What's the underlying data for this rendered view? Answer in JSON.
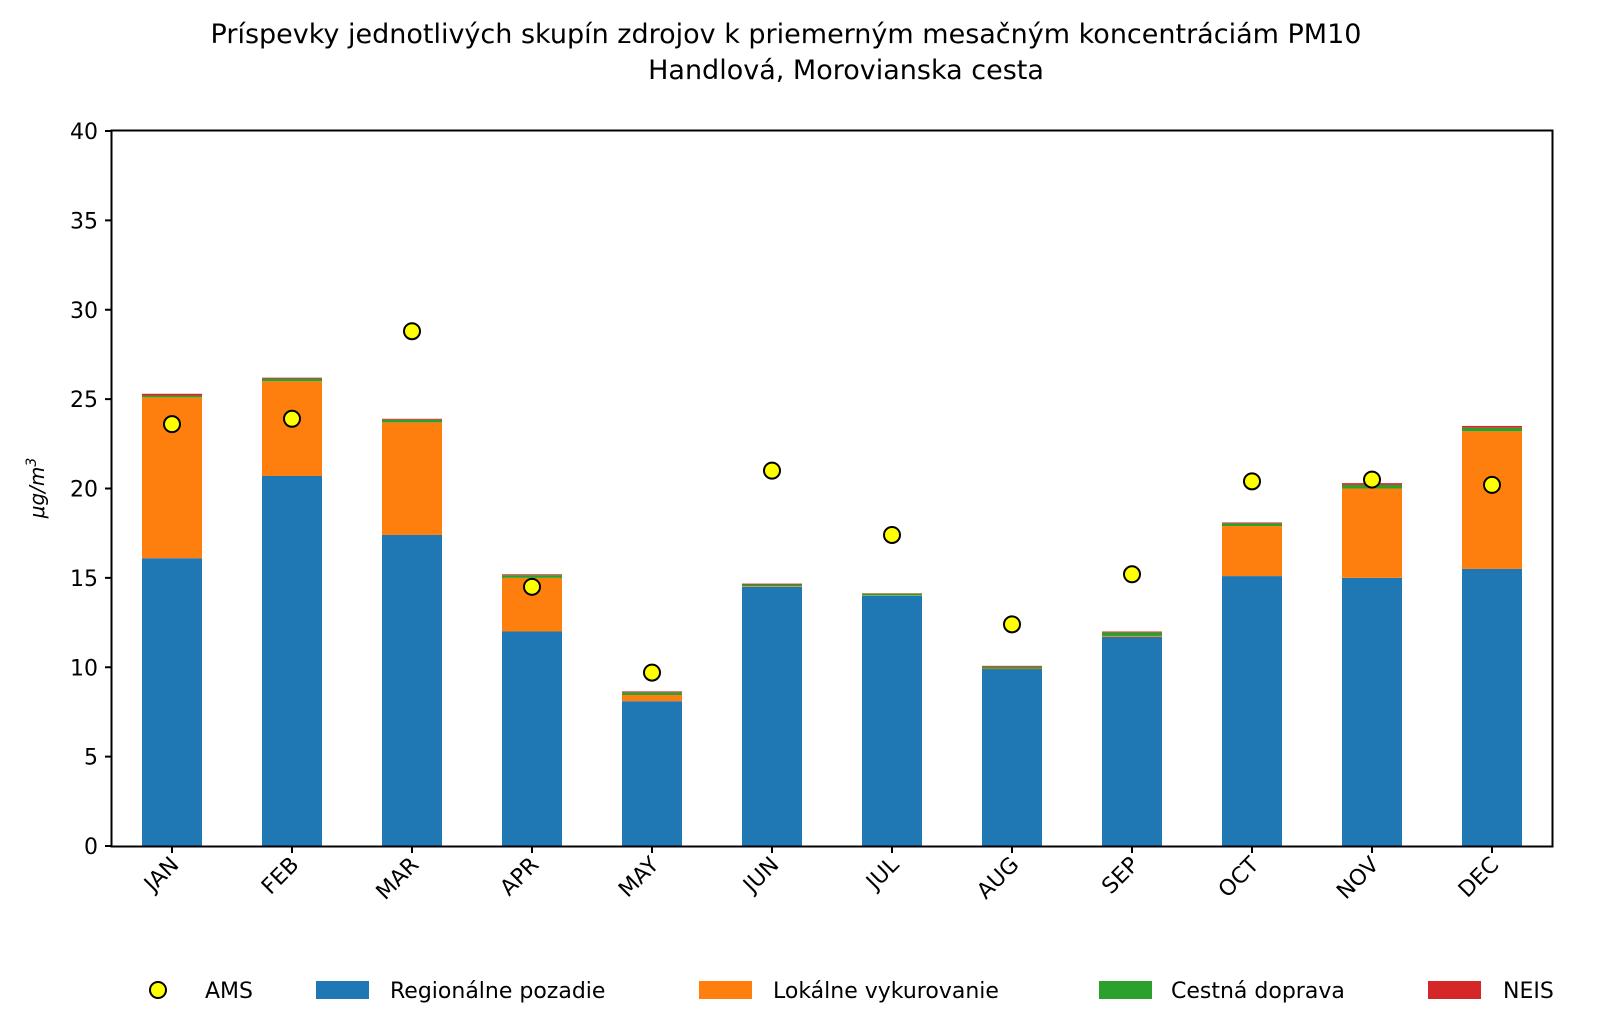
{
  "chart_data": {
    "type": "bar",
    "stacked": true,
    "title": "Príspevky jednotlivých skupín zdrojov k priemerným mesačným koncentráciám PM10",
    "subtitle": "Handlová, Morovianska cesta",
    "xlabel": "",
    "ylabel": "μg/m",
    "ylabel_sup": "3",
    "ylim": [
      0,
      40
    ],
    "yticks": [
      0,
      5,
      10,
      15,
      20,
      25,
      30,
      35,
      40
    ],
    "categories": [
      "JAN",
      "FEB",
      "MAR",
      "APR",
      "MAY",
      "JUN",
      "JUL",
      "AUG",
      "SEP",
      "OCT",
      "NOV",
      "DEC"
    ],
    "series": [
      {
        "name": "Regionálne pozadie",
        "color": "#1f77b4",
        "values": [
          16.1,
          20.7,
          17.4,
          12.0,
          8.1,
          14.5,
          14.0,
          9.9,
          11.7,
          15.1,
          15.0,
          15.5
        ]
      },
      {
        "name": "Lokálne vykurovanie",
        "color": "#ff7f0e",
        "values": [
          9.0,
          5.3,
          6.3,
          3.0,
          0.35,
          0.03,
          0.02,
          0.03,
          0.05,
          2.8,
          5.0,
          7.7
        ]
      },
      {
        "name": "Cestná doprava",
        "color": "#2ca02c",
        "values": [
          0.1,
          0.15,
          0.15,
          0.15,
          0.15,
          0.1,
          0.1,
          0.1,
          0.2,
          0.15,
          0.2,
          0.2
        ]
      },
      {
        "name": "NEIS",
        "color": "#d62728",
        "values": [
          0.1,
          0.05,
          0.05,
          0.05,
          0.05,
          0.05,
          0.02,
          0.05,
          0.05,
          0.05,
          0.1,
          0.1
        ]
      }
    ],
    "points": {
      "name": "AMS",
      "color": "#ffff00",
      "values": [
        23.6,
        23.9,
        28.8,
        14.5,
        9.7,
        21.0,
        17.4,
        12.4,
        15.2,
        20.4,
        20.5,
        20.2
      ]
    },
    "legend": {
      "position": "bottom",
      "order": [
        "AMS",
        "Regionálne pozadie",
        "Lokálne vykurovanie",
        "Cestná doprava",
        "NEIS"
      ]
    }
  }
}
